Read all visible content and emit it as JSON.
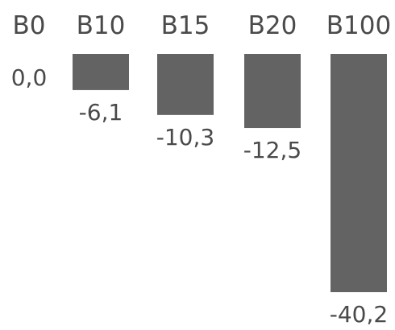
{
  "chart_data": {
    "type": "bar",
    "categories": [
      "B0",
      "B10",
      "B15",
      "B20",
      "B100"
    ],
    "values": [
      0.0,
      -6.1,
      -10.3,
      -12.5,
      -40.2
    ],
    "value_labels": [
      "0,0",
      "-6,1",
      "-10,3",
      "-12,5",
      "-40,2"
    ],
    "title": "",
    "xlabel": "",
    "ylabel": "",
    "ylim": [
      -40.2,
      0
    ],
    "grid": false,
    "colors": {
      "bar": "#636363",
      "text": "#4a4a4a"
    }
  }
}
